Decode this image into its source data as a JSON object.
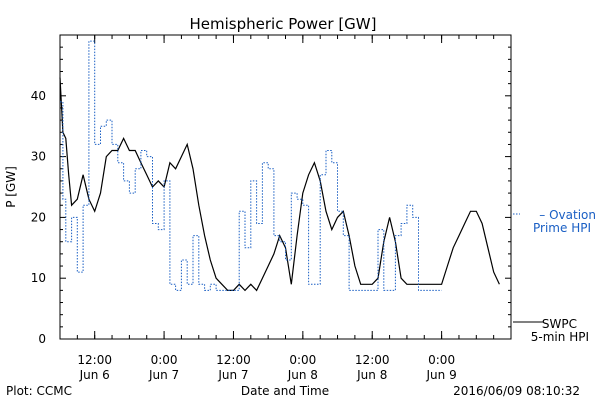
{
  "chart_data": {
    "type": "line",
    "title": "Hemispheric Power [GW]",
    "xlabel": "Date and Time",
    "ylabel": "P [GW]",
    "ylim": [
      0,
      50
    ],
    "y_ticks": [
      0,
      10,
      20,
      30,
      40
    ],
    "x_range": [
      "2016-06-06T06:00",
      "2016-06-09T12:00"
    ],
    "x_ticks": [
      {
        "time": "2016-06-06T12:00",
        "line1": "12:00",
        "line2": "Jun 6"
      },
      {
        "time": "2016-06-07T00:00",
        "line1": "0:00",
        "line2": "Jun 7"
      },
      {
        "time": "2016-06-07T12:00",
        "line1": "12:00",
        "line2": "Jun 7"
      },
      {
        "time": "2016-06-08T00:00",
        "line1": "0:00",
        "line2": "Jun 8"
      },
      {
        "time": "2016-06-08T12:00",
        "line1": "12:00",
        "line2": "Jun 8"
      },
      {
        "time": "2016-06-09T00:00",
        "line1": "0:00",
        "line2": "Jun 9"
      }
    ],
    "grid": false,
    "legend_position": "right",
    "series": [
      {
        "name": "SWPC 5-min HPI",
        "label_line1": "SWPC",
        "label_line2": "5-min HPI",
        "color": "#000000",
        "style": "solid",
        "points": [
          [
            "2016-06-06T06:00",
            43
          ],
          [
            "2016-06-06T06:30",
            34
          ],
          [
            "2016-06-06T07:00",
            33
          ],
          [
            "2016-06-06T07:30",
            27
          ],
          [
            "2016-06-06T08:00",
            22
          ],
          [
            "2016-06-06T09:00",
            23
          ],
          [
            "2016-06-06T10:00",
            27
          ],
          [
            "2016-06-06T11:00",
            23
          ],
          [
            "2016-06-06T12:00",
            21
          ],
          [
            "2016-06-06T13:00",
            24
          ],
          [
            "2016-06-06T14:00",
            30
          ],
          [
            "2016-06-06T15:00",
            31
          ],
          [
            "2016-06-06T16:00",
            31
          ],
          [
            "2016-06-06T17:00",
            33
          ],
          [
            "2016-06-06T18:00",
            31
          ],
          [
            "2016-06-06T19:00",
            31
          ],
          [
            "2016-06-06T20:00",
            29
          ],
          [
            "2016-06-06T21:00",
            27
          ],
          [
            "2016-06-06T22:00",
            25
          ],
          [
            "2016-06-06T23:00",
            26
          ],
          [
            "2016-06-07T00:00",
            25
          ],
          [
            "2016-06-07T01:00",
            29
          ],
          [
            "2016-06-07T02:00",
            28
          ],
          [
            "2016-06-07T03:00",
            30
          ],
          [
            "2016-06-07T04:00",
            32
          ],
          [
            "2016-06-07T05:00",
            28
          ],
          [
            "2016-06-07T06:00",
            22
          ],
          [
            "2016-06-07T07:00",
            17
          ],
          [
            "2016-06-07T08:00",
            13
          ],
          [
            "2016-06-07T09:00",
            10
          ],
          [
            "2016-06-07T10:00",
            9
          ],
          [
            "2016-06-07T11:00",
            8
          ],
          [
            "2016-06-07T12:00",
            8
          ],
          [
            "2016-06-07T13:00",
            9
          ],
          [
            "2016-06-07T14:00",
            8
          ],
          [
            "2016-06-07T15:00",
            9
          ],
          [
            "2016-06-07T16:00",
            8
          ],
          [
            "2016-06-07T17:00",
            10
          ],
          [
            "2016-06-07T18:00",
            12
          ],
          [
            "2016-06-07T19:00",
            14
          ],
          [
            "2016-06-07T20:00",
            17
          ],
          [
            "2016-06-07T21:00",
            15
          ],
          [
            "2016-06-07T22:00",
            9
          ],
          [
            "2016-06-07T23:00",
            17
          ],
          [
            "2016-06-08T00:00",
            24
          ],
          [
            "2016-06-08T01:00",
            27
          ],
          [
            "2016-06-08T02:00",
            29
          ],
          [
            "2016-06-08T03:00",
            26
          ],
          [
            "2016-06-08T04:00",
            21
          ],
          [
            "2016-06-08T05:00",
            18
          ],
          [
            "2016-06-08T06:00",
            20
          ],
          [
            "2016-06-08T07:00",
            21
          ],
          [
            "2016-06-08T08:00",
            17
          ],
          [
            "2016-06-08T09:00",
            12
          ],
          [
            "2016-06-08T10:00",
            9
          ],
          [
            "2016-06-08T11:00",
            9
          ],
          [
            "2016-06-08T12:00",
            9
          ],
          [
            "2016-06-08T13:00",
            10
          ],
          [
            "2016-06-08T14:00",
            16
          ],
          [
            "2016-06-08T15:00",
            20
          ],
          [
            "2016-06-08T16:00",
            16
          ],
          [
            "2016-06-08T17:00",
            10
          ],
          [
            "2016-06-08T18:00",
            9
          ],
          [
            "2016-06-08T19:00",
            9
          ],
          [
            "2016-06-08T20:00",
            9
          ],
          [
            "2016-06-08T21:00",
            9
          ],
          [
            "2016-06-08T22:00",
            9
          ],
          [
            "2016-06-08T23:00",
            9
          ],
          [
            "2016-06-09T00:00",
            9
          ],
          [
            "2016-06-09T01:00",
            12
          ],
          [
            "2016-06-09T02:00",
            15
          ],
          [
            "2016-06-09T03:00",
            17
          ],
          [
            "2016-06-09T04:00",
            19
          ],
          [
            "2016-06-09T05:00",
            21
          ],
          [
            "2016-06-09T06:00",
            21
          ],
          [
            "2016-06-09T07:00",
            19
          ],
          [
            "2016-06-09T08:00",
            15
          ],
          [
            "2016-06-09T09:00",
            11
          ],
          [
            "2016-06-09T10:00",
            9
          ]
        ]
      },
      {
        "name": "Ovation Prime HPI",
        "label_line1": "– Ovation",
        "label_line2": "Prime HPI",
        "color": "#1a5fc4",
        "style": "dotted",
        "points": [
          [
            "2016-06-06T06:00",
            39
          ],
          [
            "2016-06-06T06:30",
            23
          ],
          [
            "2016-06-06T07:00",
            16
          ],
          [
            "2016-06-06T08:00",
            20
          ],
          [
            "2016-06-06T09:00",
            11
          ],
          [
            "2016-06-06T10:00",
            22
          ],
          [
            "2016-06-06T11:00",
            49
          ],
          [
            "2016-06-06T12:00",
            32
          ],
          [
            "2016-06-06T13:00",
            35
          ],
          [
            "2016-06-06T14:00",
            36
          ],
          [
            "2016-06-06T15:00",
            32
          ],
          [
            "2016-06-06T16:00",
            29
          ],
          [
            "2016-06-06T17:00",
            26
          ],
          [
            "2016-06-06T18:00",
            24
          ],
          [
            "2016-06-06T19:00",
            28
          ],
          [
            "2016-06-06T20:00",
            31
          ],
          [
            "2016-06-06T21:00",
            30
          ],
          [
            "2016-06-06T22:00",
            19
          ],
          [
            "2016-06-06T23:00",
            18
          ],
          [
            "2016-06-07T00:00",
            26
          ],
          [
            "2016-06-07T01:00",
            9
          ],
          [
            "2016-06-07T02:00",
            8
          ],
          [
            "2016-06-07T03:00",
            13
          ],
          [
            "2016-06-07T04:00",
            9
          ],
          [
            "2016-06-07T05:00",
            17
          ],
          [
            "2016-06-07T06:00",
            9
          ],
          [
            "2016-06-07T07:00",
            8
          ],
          [
            "2016-06-07T08:00",
            9
          ],
          [
            "2016-06-07T09:00",
            8
          ],
          [
            "2016-06-07T10:00",
            8
          ],
          [
            "2016-06-07T11:00",
            8
          ],
          [
            "2016-06-07T12:00",
            8
          ],
          [
            "2016-06-07T13:00",
            21
          ],
          [
            "2016-06-07T14:00",
            15
          ],
          [
            "2016-06-07T15:00",
            26
          ],
          [
            "2016-06-07T16:00",
            19
          ],
          [
            "2016-06-07T17:00",
            29
          ],
          [
            "2016-06-07T18:00",
            28
          ],
          [
            "2016-06-07T19:00",
            17
          ],
          [
            "2016-06-07T20:00",
            16
          ],
          [
            "2016-06-07T21:00",
            13
          ],
          [
            "2016-06-07T22:00",
            24
          ],
          [
            "2016-06-07T23:00",
            23
          ],
          [
            "2016-06-08T00:00",
            22
          ],
          [
            "2016-06-08T01:00",
            9
          ],
          [
            "2016-06-08T02:00",
            9
          ],
          [
            "2016-06-08T03:00",
            27
          ],
          [
            "2016-06-08T04:00",
            31
          ],
          [
            "2016-06-08T05:00",
            29
          ],
          [
            "2016-06-08T06:00",
            21
          ],
          [
            "2016-06-08T07:00",
            17
          ],
          [
            "2016-06-08T08:00",
            8
          ],
          [
            "2016-06-08T09:00",
            8
          ],
          [
            "2016-06-08T10:00",
            8
          ],
          [
            "2016-06-08T11:00",
            8
          ],
          [
            "2016-06-08T12:00",
            8
          ],
          [
            "2016-06-08T13:00",
            18
          ],
          [
            "2016-06-08T14:00",
            8
          ],
          [
            "2016-06-08T15:00",
            8
          ],
          [
            "2016-06-08T16:00",
            17
          ],
          [
            "2016-06-08T17:00",
            19
          ],
          [
            "2016-06-08T18:00",
            22
          ],
          [
            "2016-06-08T19:00",
            20
          ],
          [
            "2016-06-08T20:00",
            8
          ],
          [
            "2016-06-08T21:00",
            8
          ],
          [
            "2016-06-08T22:00",
            8
          ],
          [
            "2016-06-08T23:00",
            8
          ],
          [
            "2016-06-09T00:00",
            8
          ]
        ]
      }
    ]
  },
  "footer": {
    "left": "Plot: CCMC",
    "right": "2016/06/09 08:10:32"
  }
}
